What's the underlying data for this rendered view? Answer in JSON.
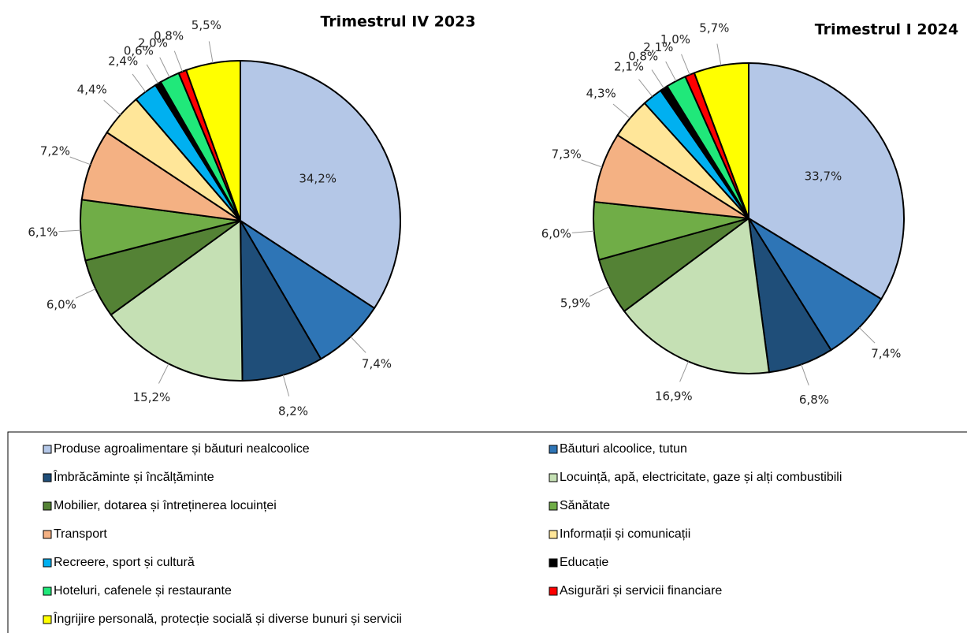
{
  "chart_data": [
    {
      "type": "pie",
      "title": "Trimestrul  IV 2023",
      "categories": [
        "Produse agroalimentare și băuturi nealcoolice",
        "Băuturi alcoolice, tutun",
        "Îmbrăcăminte și încălțăminte",
        "Locuință, apă, electricitate, gaze și alți combustibili",
        "Mobilier,  dotarea și întreținerea locuinței",
        "Sănătate",
        "Transport",
        "Informații și comunicații",
        "Recreere, sport și cultură",
        "Educație",
        "Hoteluri,  cafenele și restaurante",
        "Asigurări și servicii financiare",
        "Îngrijire  personală, protecție socială și diverse bunuri și servicii"
      ],
      "colors": [
        "#b4c7e7",
        "#2e75b6",
        "#1f4e79",
        "#c5e0b4",
        "#548235",
        "#70ad47",
        "#f4b183",
        "#ffe699",
        "#00b0f0",
        "#000000",
        "#20e87a",
        "#ff0000",
        "#ffff00"
      ],
      "values": [
        34.2,
        7.4,
        8.2,
        15.2,
        6.0,
        6.1,
        7.2,
        4.4,
        2.4,
        0.6,
        2.0,
        0.8,
        5.5
      ],
      "value_labels": [
        "34,2%",
        "7,4%",
        "8,2%",
        "15,2%",
        "6,0%",
        "6,1%",
        "7,2%",
        "4,4%",
        "2,4%",
        "0,6%",
        "2,0%",
        "0,8%",
        "5,5%"
      ]
    },
    {
      "type": "pie",
      "title": "Trimestrul  I 2024",
      "values": [
        33.7,
        7.4,
        6.8,
        16.9,
        5.9,
        6.0,
        7.3,
        4.3,
        2.1,
        0.8,
        2.1,
        1.0,
        5.7
      ],
      "value_labels": [
        "33,7%",
        "7,4%",
        "6,8%",
        "16,9%",
        "5,9%",
        "6,0%",
        "7,3%",
        "4,3%",
        "2,1%",
        "0,8%",
        "2,1%",
        "1,0%",
        "5,7%"
      ]
    }
  ]
}
